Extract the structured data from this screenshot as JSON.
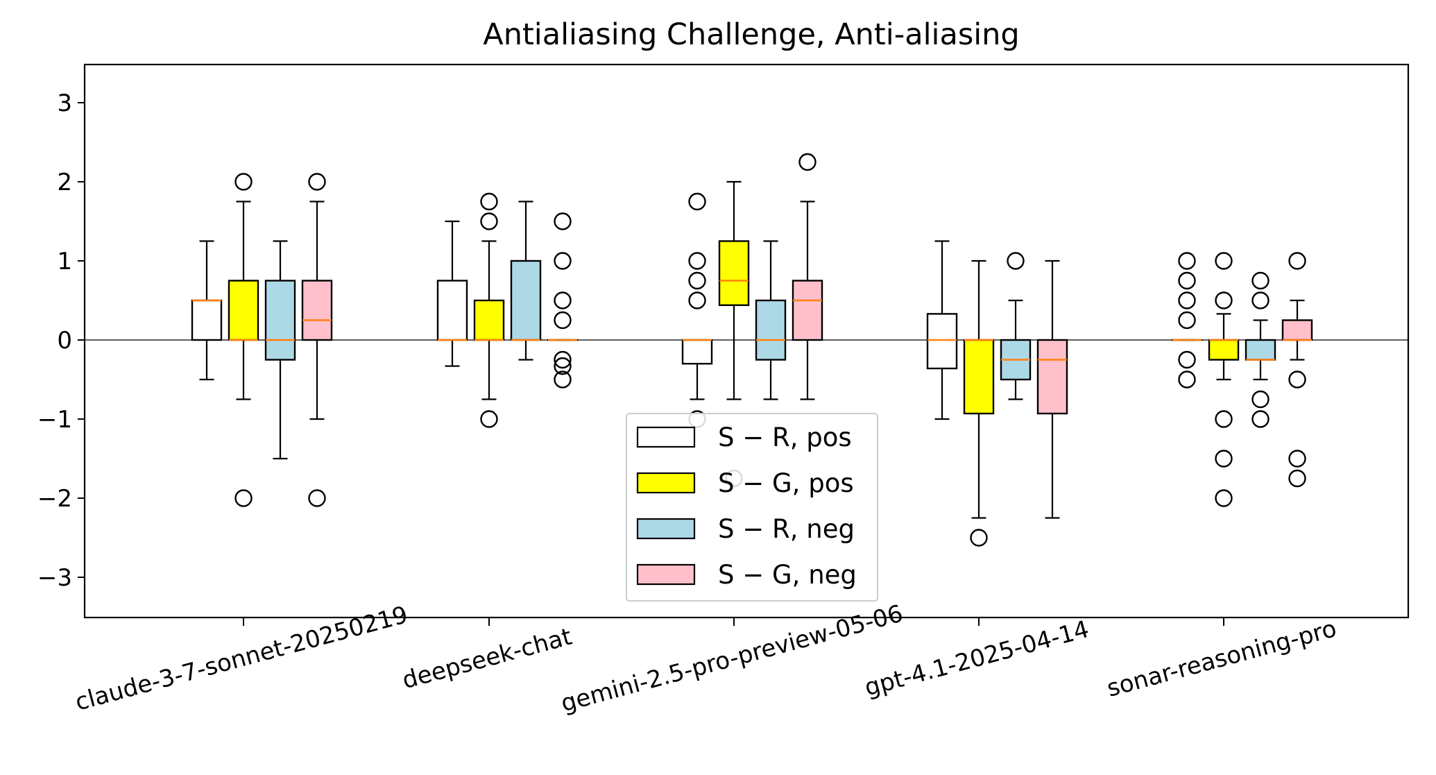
{
  "chart_data": {
    "type": "box",
    "title": "Antialiasing Challenge, Anti-aliasing",
    "xlabel": "",
    "ylabel": "",
    "ylim": [
      -3.5,
      3.5
    ],
    "yticks": [
      -3,
      -2,
      -1,
      0,
      1,
      2,
      3
    ],
    "ytick_labels": [
      "−3",
      "−2",
      "−1",
      "0",
      "1",
      "2",
      "3"
    ],
    "categories": [
      "claude-3-7-sonnet-20250219",
      "deepseek-chat",
      "gemini-2.5-pro-preview-05-06",
      "gpt-4.1-2025-04-14",
      "sonar-reasoning-pro"
    ],
    "grid": false,
    "zero_line": true,
    "legend_placement": "lower center",
    "series": [
      {
        "name": "S − R, pos",
        "color": "#ffffff",
        "boxes": [
          {
            "whislo": -0.5,
            "q1": 0,
            "med": 0.5,
            "q3": 0.5,
            "whishi": 1.25,
            "fliers": []
          },
          {
            "whislo": -0.33,
            "q1": 0,
            "med": 0,
            "q3": 0.75,
            "whishi": 1.5,
            "fliers": []
          },
          {
            "whislo": -0.75,
            "q1": -0.3,
            "med": 0,
            "q3": 0,
            "whishi": 0,
            "fliers": [
              1.75,
              1.0,
              0.75,
              0.5,
              -1.0
            ]
          },
          {
            "whislo": -1.0,
            "q1": -0.36,
            "med": 0,
            "q3": 0.33,
            "whishi": 1.25,
            "fliers": []
          },
          {
            "whislo": 0,
            "q1": 0,
            "med": 0,
            "q3": 0,
            "whishi": 0,
            "fliers": [
              1.0,
              0.75,
              0.5,
              0.25,
              -0.25,
              -0.5
            ]
          }
        ]
      },
      {
        "name": "S − G, pos",
        "color": "#ffff00",
        "boxes": [
          {
            "whislo": -0.75,
            "q1": 0,
            "med": 0,
            "q3": 0.75,
            "whishi": 1.75,
            "fliers": [
              2.0,
              -2.0
            ]
          },
          {
            "whislo": -0.75,
            "q1": 0,
            "med": 0,
            "q3": 0.5,
            "whishi": 1.25,
            "fliers": [
              1.75,
              1.5,
              -1.0
            ]
          },
          {
            "whislo": -0.75,
            "q1": 0.44,
            "med": 0.75,
            "q3": 1.25,
            "whishi": 2.0,
            "fliers": [
              -1.75
            ]
          },
          {
            "whislo": -2.25,
            "q1": -0.93,
            "med": 0,
            "q3": 0,
            "whishi": 1.0,
            "fliers": [
              -2.5
            ]
          },
          {
            "whislo": -0.5,
            "q1": -0.25,
            "med": 0,
            "q3": 0,
            "whishi": 0.33,
            "fliers": [
              1.0,
              0.5,
              -1.0,
              -1.5,
              -2.0
            ]
          }
        ]
      },
      {
        "name": "S − R, neg",
        "color": "#add8e6",
        "boxes": [
          {
            "whislo": -1.5,
            "q1": -0.25,
            "med": 0,
            "q3": 0.75,
            "whishi": 1.25,
            "fliers": []
          },
          {
            "whislo": -0.25,
            "q1": 0,
            "med": 0,
            "q3": 1.0,
            "whishi": 1.75,
            "fliers": []
          },
          {
            "whislo": -0.75,
            "q1": -0.25,
            "med": 0,
            "q3": 0.5,
            "whishi": 1.25,
            "fliers": []
          },
          {
            "whislo": -0.75,
            "q1": -0.5,
            "med": -0.25,
            "q3": 0,
            "whishi": 0.5,
            "fliers": [
              1.0
            ]
          },
          {
            "whislo": -0.5,
            "q1": -0.25,
            "med": -0.25,
            "q3": 0,
            "whishi": 0.25,
            "fliers": [
              0.75,
              0.5,
              -0.75,
              -1.0
            ]
          }
        ]
      },
      {
        "name": "S − G, neg",
        "color": "#ffc0cb",
        "boxes": [
          {
            "whislo": -1.0,
            "q1": 0,
            "med": 0.25,
            "q3": 0.75,
            "whishi": 1.75,
            "fliers": [
              2.0,
              -2.0
            ]
          },
          {
            "whislo": 0,
            "q1": 0,
            "med": 0,
            "q3": 0,
            "whishi": 0,
            "fliers": [
              1.5,
              1.0,
              0.5,
              0.25,
              -0.25,
              -0.33,
              -0.5
            ]
          },
          {
            "whislo": -0.75,
            "q1": 0,
            "med": 0.5,
            "q3": 0.75,
            "whishi": 1.75,
            "fliers": [
              2.25
            ]
          },
          {
            "whislo": -2.25,
            "q1": -0.93,
            "med": -0.25,
            "q3": 0,
            "whishi": 1.0,
            "fliers": []
          },
          {
            "whislo": -0.25,
            "q1": 0,
            "med": 0,
            "q3": 0.25,
            "whishi": 0.5,
            "fliers": [
              1.0,
              -0.5,
              -1.5,
              -1.75
            ]
          }
        ]
      }
    ],
    "median_color": "#ff7f0e"
  }
}
